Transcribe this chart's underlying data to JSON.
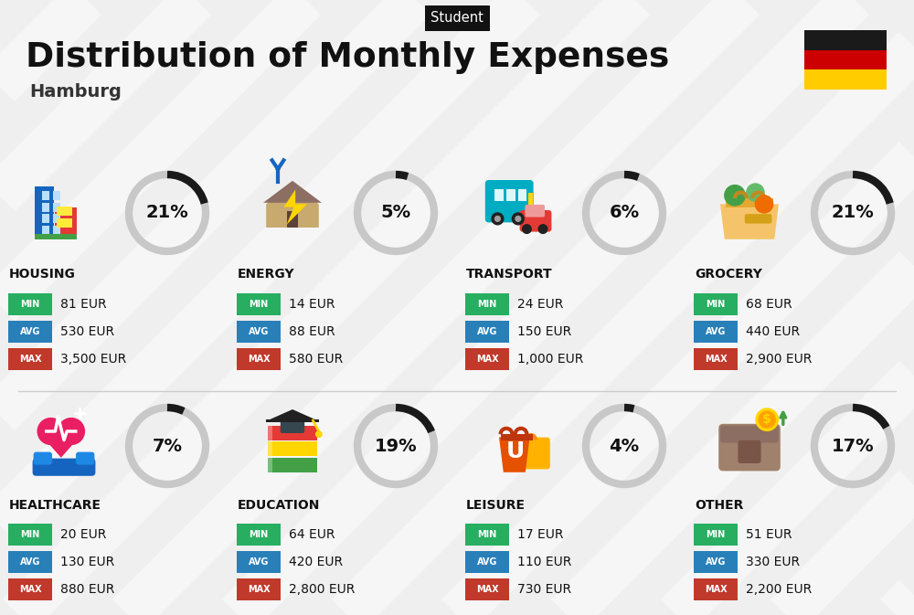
{
  "title": "Distribution of Monthly Expenses",
  "subtitle": "Hamburg",
  "label": "Student",
  "bg_color": "#efefef",
  "flag_colors": [
    "#1a1a1a",
    "#cc0000",
    "#ffcc00"
  ],
  "categories": [
    {
      "name": "HOUSING",
      "percent": 21,
      "min_val": "81 EUR",
      "avg_val": "530 EUR",
      "max_val": "3,500 EUR",
      "row": 0,
      "col": 0
    },
    {
      "name": "ENERGY",
      "percent": 5,
      "min_val": "14 EUR",
      "avg_val": "88 EUR",
      "max_val": "580 EUR",
      "row": 0,
      "col": 1
    },
    {
      "name": "TRANSPORT",
      "percent": 6,
      "min_val": "24 EUR",
      "avg_val": "150 EUR",
      "max_val": "1,000 EUR",
      "row": 0,
      "col": 2
    },
    {
      "name": "GROCERY",
      "percent": 21,
      "min_val": "68 EUR",
      "avg_val": "440 EUR",
      "max_val": "2,900 EUR",
      "row": 0,
      "col": 3
    },
    {
      "name": "HEALTHCARE",
      "percent": 7,
      "min_val": "20 EUR",
      "avg_val": "130 EUR",
      "max_val": "880 EUR",
      "row": 1,
      "col": 0
    },
    {
      "name": "EDUCATION",
      "percent": 19,
      "min_val": "64 EUR",
      "avg_val": "420 EUR",
      "max_val": "2,800 EUR",
      "row": 1,
      "col": 1
    },
    {
      "name": "LEISURE",
      "percent": 4,
      "min_val": "17 EUR",
      "avg_val": "110 EUR",
      "max_val": "730 EUR",
      "row": 1,
      "col": 2
    },
    {
      "name": "OTHER",
      "percent": 17,
      "min_val": "51 EUR",
      "avg_val": "330 EUR",
      "max_val": "2,200 EUR",
      "row": 1,
      "col": 3
    }
  ],
  "min_color": "#27ae60",
  "avg_color": "#2980b9",
  "max_color": "#c0392b",
  "donut_bg_color": "#c8c8c8",
  "donut_fg_color": "#1a1a1a",
  "label_bg": "#111111",
  "label_fg": "#ffffff",
  "title_color": "#111111",
  "subtitle_color": "#333333"
}
